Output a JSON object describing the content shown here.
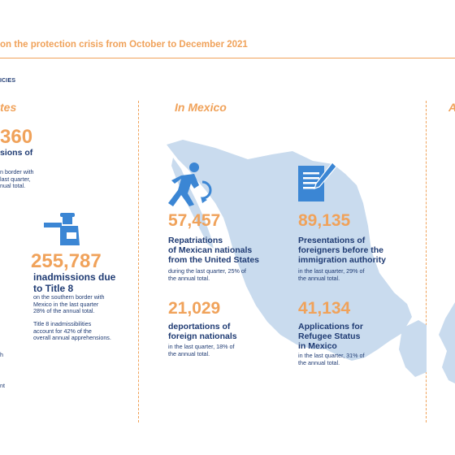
{
  "header": {
    "title": "on the protection crisis from October to December 2021",
    "section": "ICIES"
  },
  "columns": {
    "left_title": "tes",
    "mid_title": "In Mexico",
    "right_title": "A"
  },
  "left": {
    "top_number": "360",
    "top_label": "sions of",
    "top_note": "n border with\nlast quarter,\nnual total.",
    "main_number": "255,787",
    "main_label": "inadmissions due\nto Title 8",
    "main_note": "on the southern border with\nMexico in the last quarter\n28% of the annual total.",
    "extra_note": "Title 8 inadmissibilities\naccount for 42% of the\noverall annual apprehensions.",
    "frag1": "h",
    "frag2": "",
    "frag3": "nt"
  },
  "mexico": {
    "repatriations": {
      "number": "57,457",
      "label": "Repatriations\nof Mexican nationals\nfrom the United States",
      "note": "during the last quarter, 25% of\nthe annual total."
    },
    "presentations": {
      "number": "89,135",
      "label": "Presentations of\nforeigners before the\nimmigration authority",
      "note": "in the last quarter, 29% of\nthe annual total."
    },
    "deportations": {
      "number": "21,029",
      "label": "deportations of\nforeign nationals",
      "note": "in the last quarter, 18% of\nthe annual total."
    },
    "refugee": {
      "number": "41,134",
      "label": "Applications for\nRefugee Status\nin Mexico",
      "note": "in the last quarter, 31% of\nthe annual total."
    }
  },
  "colors": {
    "accent": "#f0a25a",
    "navy": "#1f3b73",
    "blue": "#3b86d4",
    "map": "#c9dbee"
  }
}
